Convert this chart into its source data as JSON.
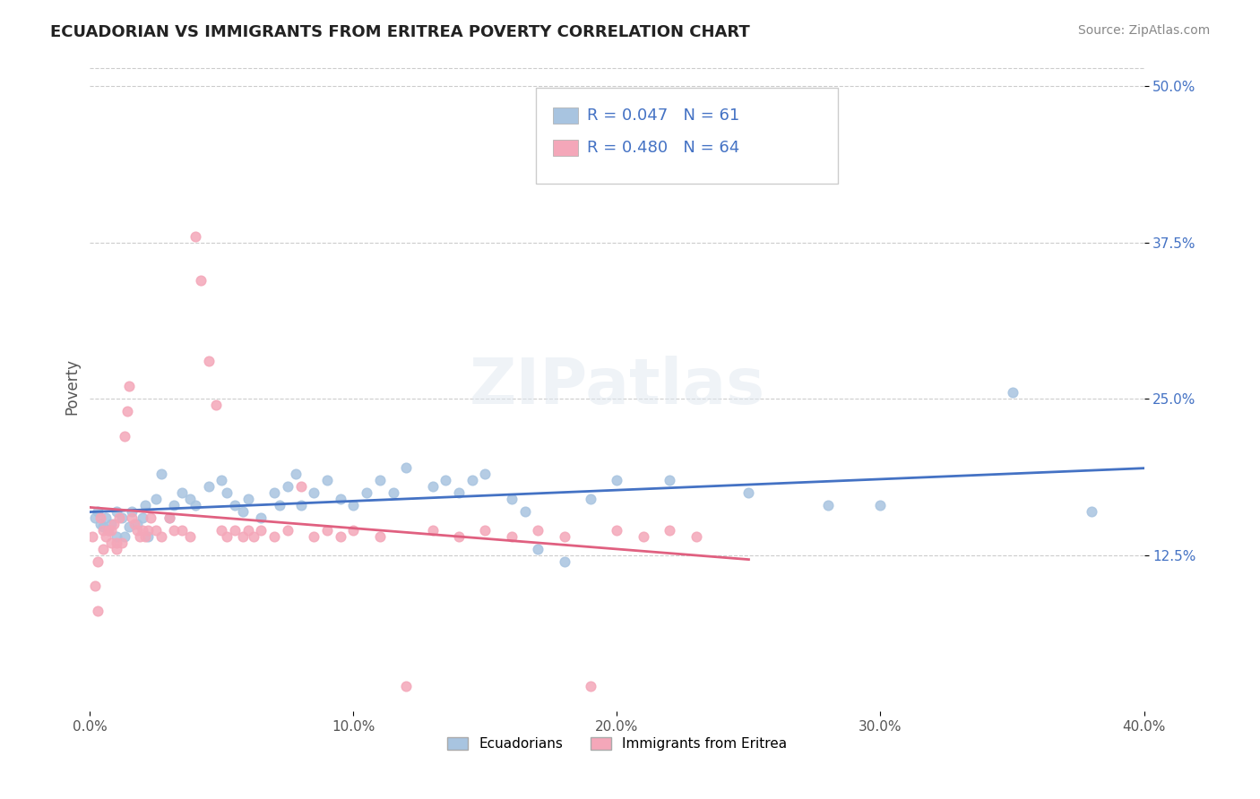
{
  "title": "ECUADORIAN VS IMMIGRANTS FROM ERITREA POVERTY CORRELATION CHART",
  "source_text": "Source: ZipAtlas.com",
  "xlabel": "",
  "ylabel": "Poverty",
  "xlim": [
    0.0,
    0.4
  ],
  "ylim": [
    0.0,
    0.52
  ],
  "xtick_labels": [
    "0.0%",
    "10.0%",
    "20.0%",
    "30.0%",
    "40.0%"
  ],
  "xtick_vals": [
    0.0,
    0.1,
    0.2,
    0.3,
    0.4
  ],
  "ytick_labels_right": [
    "12.5%",
    "25.0%",
    "37.5%",
    "50.0%"
  ],
  "ytick_vals_right": [
    0.125,
    0.25,
    0.375,
    0.5
  ],
  "ecuador_color": "#a8c4e0",
  "eritrea_color": "#f4a7b9",
  "ecuador_line_color": "#4472c4",
  "eritrea_line_color": "#e06080",
  "ecuador_R": 0.047,
  "ecuador_N": 61,
  "eritrea_R": 0.48,
  "eritrea_N": 64,
  "legend_text_color": "#4472c4",
  "watermark": "ZIPatlas",
  "background_color": "#ffffff",
  "grid_color": "#cccccc",
  "ecuador_x": [
    0.002,
    0.003,
    0.004,
    0.005,
    0.006,
    0.007,
    0.008,
    0.01,
    0.01,
    0.012,
    0.013,
    0.015,
    0.016,
    0.018,
    0.02,
    0.021,
    0.022,
    0.025,
    0.027,
    0.03,
    0.032,
    0.035,
    0.038,
    0.04,
    0.045,
    0.05,
    0.052,
    0.055,
    0.058,
    0.06,
    0.065,
    0.07,
    0.072,
    0.075,
    0.078,
    0.08,
    0.085,
    0.09,
    0.095,
    0.1,
    0.105,
    0.11,
    0.115,
    0.12,
    0.13,
    0.135,
    0.14,
    0.145,
    0.15,
    0.16,
    0.165,
    0.17,
    0.18,
    0.19,
    0.2,
    0.22,
    0.25,
    0.28,
    0.3,
    0.35,
    0.38
  ],
  "ecuador_y": [
    0.155,
    0.16,
    0.15,
    0.148,
    0.155,
    0.145,
    0.15,
    0.14,
    0.16,
    0.155,
    0.14,
    0.148,
    0.16,
    0.15,
    0.155,
    0.165,
    0.14,
    0.17,
    0.19,
    0.155,
    0.165,
    0.175,
    0.17,
    0.165,
    0.18,
    0.185,
    0.175,
    0.165,
    0.16,
    0.17,
    0.155,
    0.175,
    0.165,
    0.18,
    0.19,
    0.165,
    0.175,
    0.185,
    0.17,
    0.165,
    0.175,
    0.185,
    0.175,
    0.195,
    0.18,
    0.185,
    0.175,
    0.185,
    0.19,
    0.17,
    0.16,
    0.13,
    0.12,
    0.17,
    0.185,
    0.185,
    0.175,
    0.165,
    0.165,
    0.255,
    0.16
  ],
  "eritrea_x": [
    0.001,
    0.002,
    0.003,
    0.003,
    0.004,
    0.005,
    0.005,
    0.006,
    0.007,
    0.008,
    0.008,
    0.009,
    0.01,
    0.01,
    0.011,
    0.012,
    0.013,
    0.014,
    0.015,
    0.016,
    0.017,
    0.018,
    0.019,
    0.02,
    0.021,
    0.022,
    0.023,
    0.025,
    0.027,
    0.03,
    0.032,
    0.035,
    0.038,
    0.04,
    0.042,
    0.045,
    0.048,
    0.05,
    0.052,
    0.055,
    0.058,
    0.06,
    0.062,
    0.065,
    0.07,
    0.075,
    0.08,
    0.085,
    0.09,
    0.095,
    0.1,
    0.11,
    0.12,
    0.13,
    0.14,
    0.15,
    0.16,
    0.17,
    0.18,
    0.19,
    0.2,
    0.21,
    0.22,
    0.23
  ],
  "eritrea_y": [
    0.14,
    0.1,
    0.08,
    0.12,
    0.155,
    0.13,
    0.145,
    0.14,
    0.145,
    0.135,
    0.145,
    0.15,
    0.135,
    0.13,
    0.155,
    0.135,
    0.22,
    0.24,
    0.26,
    0.155,
    0.15,
    0.145,
    0.14,
    0.145,
    0.14,
    0.145,
    0.155,
    0.145,
    0.14,
    0.155,
    0.145,
    0.145,
    0.14,
    0.38,
    0.345,
    0.28,
    0.245,
    0.145,
    0.14,
    0.145,
    0.14,
    0.145,
    0.14,
    0.145,
    0.14,
    0.145,
    0.18,
    0.14,
    0.145,
    0.14,
    0.145,
    0.14,
    0.02,
    0.145,
    0.14,
    0.145,
    0.14,
    0.145,
    0.14,
    0.02,
    0.145,
    0.14,
    0.145,
    0.14
  ]
}
